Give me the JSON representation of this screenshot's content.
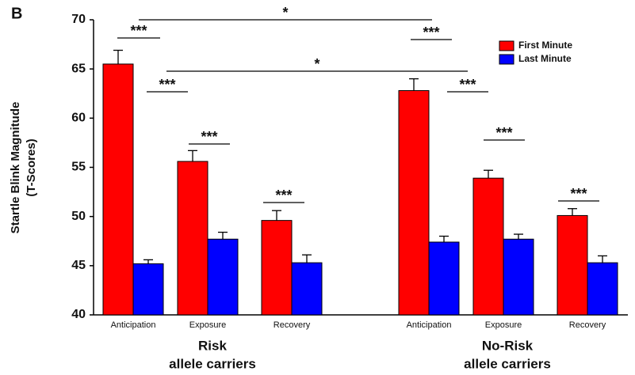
{
  "chart_data": {
    "type": "bar",
    "panel_label": "B",
    "y_label": [
      "Startle Blink Magnitude",
      "(T-Scores)"
    ],
    "categories": [
      "Anticipation",
      "Exposure",
      "Recovery",
      "Anticipation",
      "Exposure",
      "Recovery"
    ],
    "groups": [
      [
        "Risk",
        "allele carriers"
      ],
      [
        "No-Risk",
        "allele carriers"
      ]
    ],
    "series": [
      {
        "name": "First Minute",
        "color": "#ff0000",
        "values": [
          65.5,
          55.6,
          49.6,
          62.8,
          53.9,
          50.1
        ],
        "errors": [
          1.4,
          1.1,
          1.0,
          1.2,
          0.8,
          0.7
        ]
      },
      {
        "name": "Last Minute",
        "color": "#0000ff",
        "values": [
          45.2,
          47.7,
          45.3,
          47.4,
          47.7,
          45.3
        ],
        "errors": [
          0.4,
          0.7,
          0.8,
          0.6,
          0.5,
          0.7
        ]
      }
    ],
    "annotations": [
      "***",
      "***",
      "***",
      "***",
      "***",
      "***",
      "***",
      "***",
      "*",
      "*"
    ],
    "ylim": [
      40,
      70
    ],
    "yticks": [
      40,
      45,
      50,
      55,
      60,
      65,
      70
    ],
    "legend": "top-right"
  }
}
